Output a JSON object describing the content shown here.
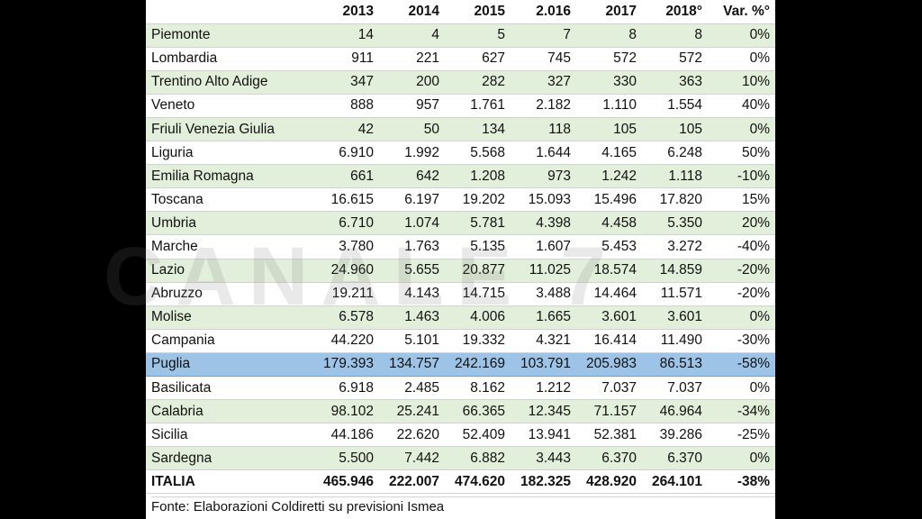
{
  "watermark": "CANALE 7",
  "source": "Fonte: Elaborazioni Coldiretti su previsioni Ismea",
  "chart_data": {
    "type": "table",
    "columns": [
      "",
      "2013",
      "2014",
      "2015",
      "2.016",
      "2017",
      "2018°",
      "Var. %°"
    ],
    "highlight_row": "Puglia",
    "row_colors": {
      "band": "#e2efda",
      "highlight": "#9dc3e6"
    },
    "rows": [
      {
        "region": "Piemonte",
        "values": [
          "14",
          "4",
          "5",
          "7",
          "8",
          "8"
        ],
        "var": "0%"
      },
      {
        "region": "Lombardia",
        "values": [
          "911",
          "221",
          "627",
          "745",
          "572",
          "572"
        ],
        "var": "0%"
      },
      {
        "region": "Trentino Alto Adige",
        "values": [
          "347",
          "200",
          "282",
          "327",
          "330",
          "363"
        ],
        "var": "10%"
      },
      {
        "region": "Veneto",
        "values": [
          "888",
          "957",
          "1.761",
          "2.182",
          "1.110",
          "1.554"
        ],
        "var": "40%"
      },
      {
        "region": "Friuli Venezia Giulia",
        "values": [
          "42",
          "50",
          "134",
          "118",
          "105",
          "105"
        ],
        "var": "0%"
      },
      {
        "region": "Liguria",
        "values": [
          "6.910",
          "1.992",
          "5.568",
          "1.644",
          "4.165",
          "6.248"
        ],
        "var": "50%"
      },
      {
        "region": "Emilia Romagna",
        "values": [
          "661",
          "642",
          "1.208",
          "973",
          "1.242",
          "1.118"
        ],
        "var": "-10%"
      },
      {
        "region": "Toscana",
        "values": [
          "16.615",
          "6.197",
          "19.202",
          "15.093",
          "15.496",
          "17.820"
        ],
        "var": "15%"
      },
      {
        "region": "Umbria",
        "values": [
          "6.710",
          "1.074",
          "5.781",
          "4.398",
          "4.458",
          "5.350"
        ],
        "var": "20%"
      },
      {
        "region": "Marche",
        "values": [
          "3.780",
          "1.763",
          "5.135",
          "1.607",
          "5.453",
          "3.272"
        ],
        "var": "-40%"
      },
      {
        "region": "Lazio",
        "values": [
          "24.960",
          "5.655",
          "20.877",
          "11.025",
          "18.574",
          "14.859"
        ],
        "var": "-20%"
      },
      {
        "region": "Abruzzo",
        "values": [
          "19.211",
          "4.143",
          "14.715",
          "3.488",
          "14.464",
          "11.571"
        ],
        "var": "-20%"
      },
      {
        "region": "Molise",
        "values": [
          "6.578",
          "1.463",
          "4.006",
          "1.665",
          "3.601",
          "3.601"
        ],
        "var": "0%"
      },
      {
        "region": "Campania",
        "values": [
          "44.220",
          "5.101",
          "19.332",
          "4.321",
          "16.414",
          "11.490"
        ],
        "var": "-30%"
      },
      {
        "region": "Puglia",
        "values": [
          "179.393",
          "134.757",
          "242.169",
          "103.791",
          "205.983",
          "86.513"
        ],
        "var": "-58%"
      },
      {
        "region": "Basilicata",
        "values": [
          "6.918",
          "2.485",
          "8.162",
          "1.212",
          "7.037",
          "7.037"
        ],
        "var": "0%"
      },
      {
        "region": "Calabria",
        "values": [
          "98.102",
          "25.241",
          "66.365",
          "12.345",
          "71.157",
          "46.964"
        ],
        "var": "-34%"
      },
      {
        "region": "Sicilia",
        "values": [
          "44.186",
          "22.620",
          "52.409",
          "13.941",
          "52.381",
          "39.286"
        ],
        "var": "-25%"
      },
      {
        "region": "Sardegna",
        "values": [
          "5.500",
          "7.442",
          "6.882",
          "3.443",
          "6.370",
          "6.370"
        ],
        "var": "0%"
      }
    ],
    "total": {
      "region": "ITALIA",
      "values": [
        "465.946",
        "222.007",
        "474.620",
        "182.325",
        "428.920",
        "264.101"
      ],
      "var": "-38%"
    }
  }
}
